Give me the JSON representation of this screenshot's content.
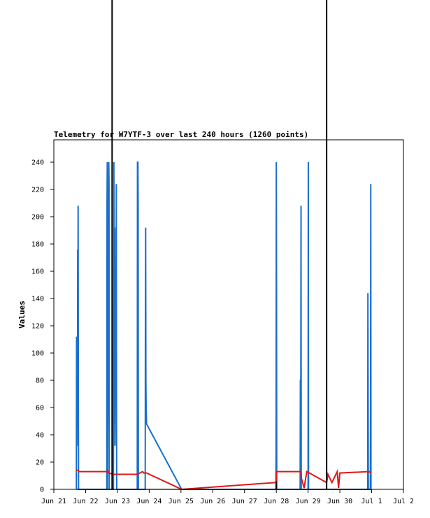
{
  "chart_data": {
    "type": "line",
    "title": "Telemetry for W7YTF-3 over last 240 hours (1260 points)",
    "xlabel": "",
    "ylabel": "Values",
    "ylim": [
      0,
      255
    ],
    "yticks": [
      0,
      20,
      40,
      60,
      80,
      100,
      120,
      140,
      160,
      180,
      200,
      220,
      240
    ],
    "xlim": [
      "2019-06-21",
      "2019-07-02"
    ],
    "xtick_labels": [
      "Jun 21",
      "Jun 22",
      "Jun 23",
      "Jun 24",
      "Jun 25",
      "Jun 26",
      "Jun 27",
      "Jun 28",
      "Jun 29",
      "Jun 30",
      "Jul 1",
      "Jul 2"
    ],
    "grid": false,
    "colors": {
      "series_blue": "#1a6fcc",
      "series_red": "#e01818",
      "marker_lines": "#000000"
    },
    "markers": [
      "2019-06-22T20:00",
      "2019-06-29T14:00"
    ],
    "series": [
      {
        "color": "#1a6fcc",
        "points": [
          [
            "2019-06-21T17:00",
            0
          ],
          [
            "2019-06-21T17:10",
            112
          ],
          [
            "2019-06-21T17:20",
            98
          ],
          [
            "2019-06-21T17:30",
            72
          ],
          [
            "2019-06-21T17:40",
            104
          ],
          [
            "2019-06-21T17:50",
            46
          ],
          [
            "2019-06-21T18:00",
            176
          ],
          [
            "2019-06-21T18:10",
            32
          ],
          [
            "2019-06-21T18:20",
            208
          ],
          [
            "2019-06-21T18:30",
            80
          ],
          [
            "2019-06-21T18:40",
            0
          ],
          [
            "2019-06-22T16:00",
            0
          ],
          [
            "2019-06-22T16:10",
            208
          ],
          [
            "2019-06-22T16:20",
            240
          ],
          [
            "2019-06-22T16:30",
            0
          ],
          [
            "2019-06-22T17:30",
            240
          ],
          [
            "2019-06-22T17:40",
            224
          ],
          [
            "2019-06-22T17:50",
            0
          ],
          [
            "2019-06-22T21:00",
            0
          ],
          [
            "2019-06-22T21:10",
            144
          ],
          [
            "2019-06-22T21:20",
            240
          ],
          [
            "2019-06-22T21:30",
            180
          ],
          [
            "2019-06-22T21:40",
            160
          ],
          [
            "2019-06-22T21:50",
            48
          ],
          [
            "2019-06-22T22:00",
            192
          ],
          [
            "2019-06-22T22:10",
            32
          ],
          [
            "2019-06-22T22:20",
            96
          ],
          [
            "2019-06-22T22:40",
            128
          ],
          [
            "2019-06-22T22:50",
            112
          ],
          [
            "2019-06-22T23:00",
            80
          ],
          [
            "2019-06-22T23:10",
            224
          ],
          [
            "2019-06-22T23:20",
            48
          ],
          [
            "2019-06-22T23:30",
            0
          ],
          [
            "2019-06-23T15:00",
            0
          ],
          [
            "2019-06-23T15:10",
            240
          ],
          [
            "2019-06-23T15:30",
            240
          ],
          [
            "2019-06-23T15:40",
            208
          ],
          [
            "2019-06-23T15:50",
            0
          ],
          [
            "2019-06-23T21:00",
            0
          ],
          [
            "2019-06-23T21:10",
            128
          ],
          [
            "2019-06-23T21:20",
            192
          ],
          [
            "2019-06-23T21:30",
            80
          ],
          [
            "2019-06-23T21:40",
            64
          ],
          [
            "2019-06-23T22:00",
            48
          ],
          [
            "2019-06-25T00:30",
            0
          ],
          [
            "2019-06-27T23:40",
            0
          ],
          [
            "2019-06-27T23:50",
            32
          ],
          [
            "2019-06-28T00:00",
            240
          ],
          [
            "2019-06-28T00:10",
            144
          ],
          [
            "2019-06-28T00:20",
            0
          ],
          [
            "2019-06-28T18:00",
            0
          ],
          [
            "2019-06-28T18:10",
            80
          ],
          [
            "2019-06-28T18:30",
            80
          ],
          [
            "2019-06-28T18:40",
            208
          ],
          [
            "2019-06-28T18:50",
            0
          ],
          [
            "2019-06-29T00:00",
            0
          ],
          [
            "2019-06-29T00:10",
            240
          ],
          [
            "2019-06-29T00:20",
            0
          ],
          [
            "2019-06-30T21:00",
            0
          ],
          [
            "2019-06-30T21:10",
            144
          ],
          [
            "2019-06-30T21:30",
            0
          ],
          [
            "2019-06-30T23:00",
            0
          ],
          [
            "2019-06-30T23:10",
            80
          ],
          [
            "2019-06-30T23:20",
            224
          ],
          [
            "2019-06-30T23:30",
            0
          ]
        ]
      },
      {
        "color": "#e01818",
        "points": [
          [
            "2019-06-21T17:00",
            14
          ],
          [
            "2019-06-21T18:30",
            14
          ],
          [
            "2019-06-21T19:00",
            13
          ],
          [
            "2019-06-22T16:00",
            13
          ],
          [
            "2019-06-22T16:30",
            14
          ],
          [
            "2019-06-22T17:30",
            12
          ],
          [
            "2019-06-22T21:00",
            11
          ],
          [
            "2019-06-22T23:00",
            11
          ],
          [
            "2019-06-23T15:00",
            11
          ],
          [
            "2019-06-23T17:00",
            12
          ],
          [
            "2019-06-23T19:00",
            13
          ],
          [
            "2019-06-23T20:00",
            12
          ],
          [
            "2019-06-23T22:00",
            12
          ],
          [
            "2019-06-25T00:30",
            0
          ],
          [
            "2019-06-27T23:50",
            5
          ],
          [
            "2019-06-28T00:00",
            13
          ],
          [
            "2019-06-28T18:30",
            13
          ],
          [
            "2019-06-28T19:00",
            8
          ],
          [
            "2019-06-28T21:00",
            1
          ],
          [
            "2019-06-28T23:00",
            13
          ],
          [
            "2019-06-29T01:00",
            12
          ],
          [
            "2019-06-29T14:00",
            5
          ],
          [
            "2019-06-29T15:00",
            11
          ],
          [
            "2019-06-29T18:00",
            5
          ],
          [
            "2019-06-29T22:00",
            13
          ],
          [
            "2019-06-29T23:00",
            1
          ],
          [
            "2019-06-30T00:00",
            12
          ],
          [
            "2019-06-30T22:00",
            13
          ],
          [
            "2019-06-30T23:30",
            12
          ]
        ]
      },
      {
        "color": "#000000",
        "points": [
          [
            "2019-06-21T17:00",
            0
          ],
          [
            "2019-06-22T21:00",
            0
          ],
          [
            "2019-06-28T00:00",
            0
          ],
          [
            "2019-06-28T00:00",
            6
          ],
          [
            "2019-06-28T00:10",
            0
          ],
          [
            "2019-06-30T23:30",
            0
          ]
        ]
      }
    ]
  }
}
